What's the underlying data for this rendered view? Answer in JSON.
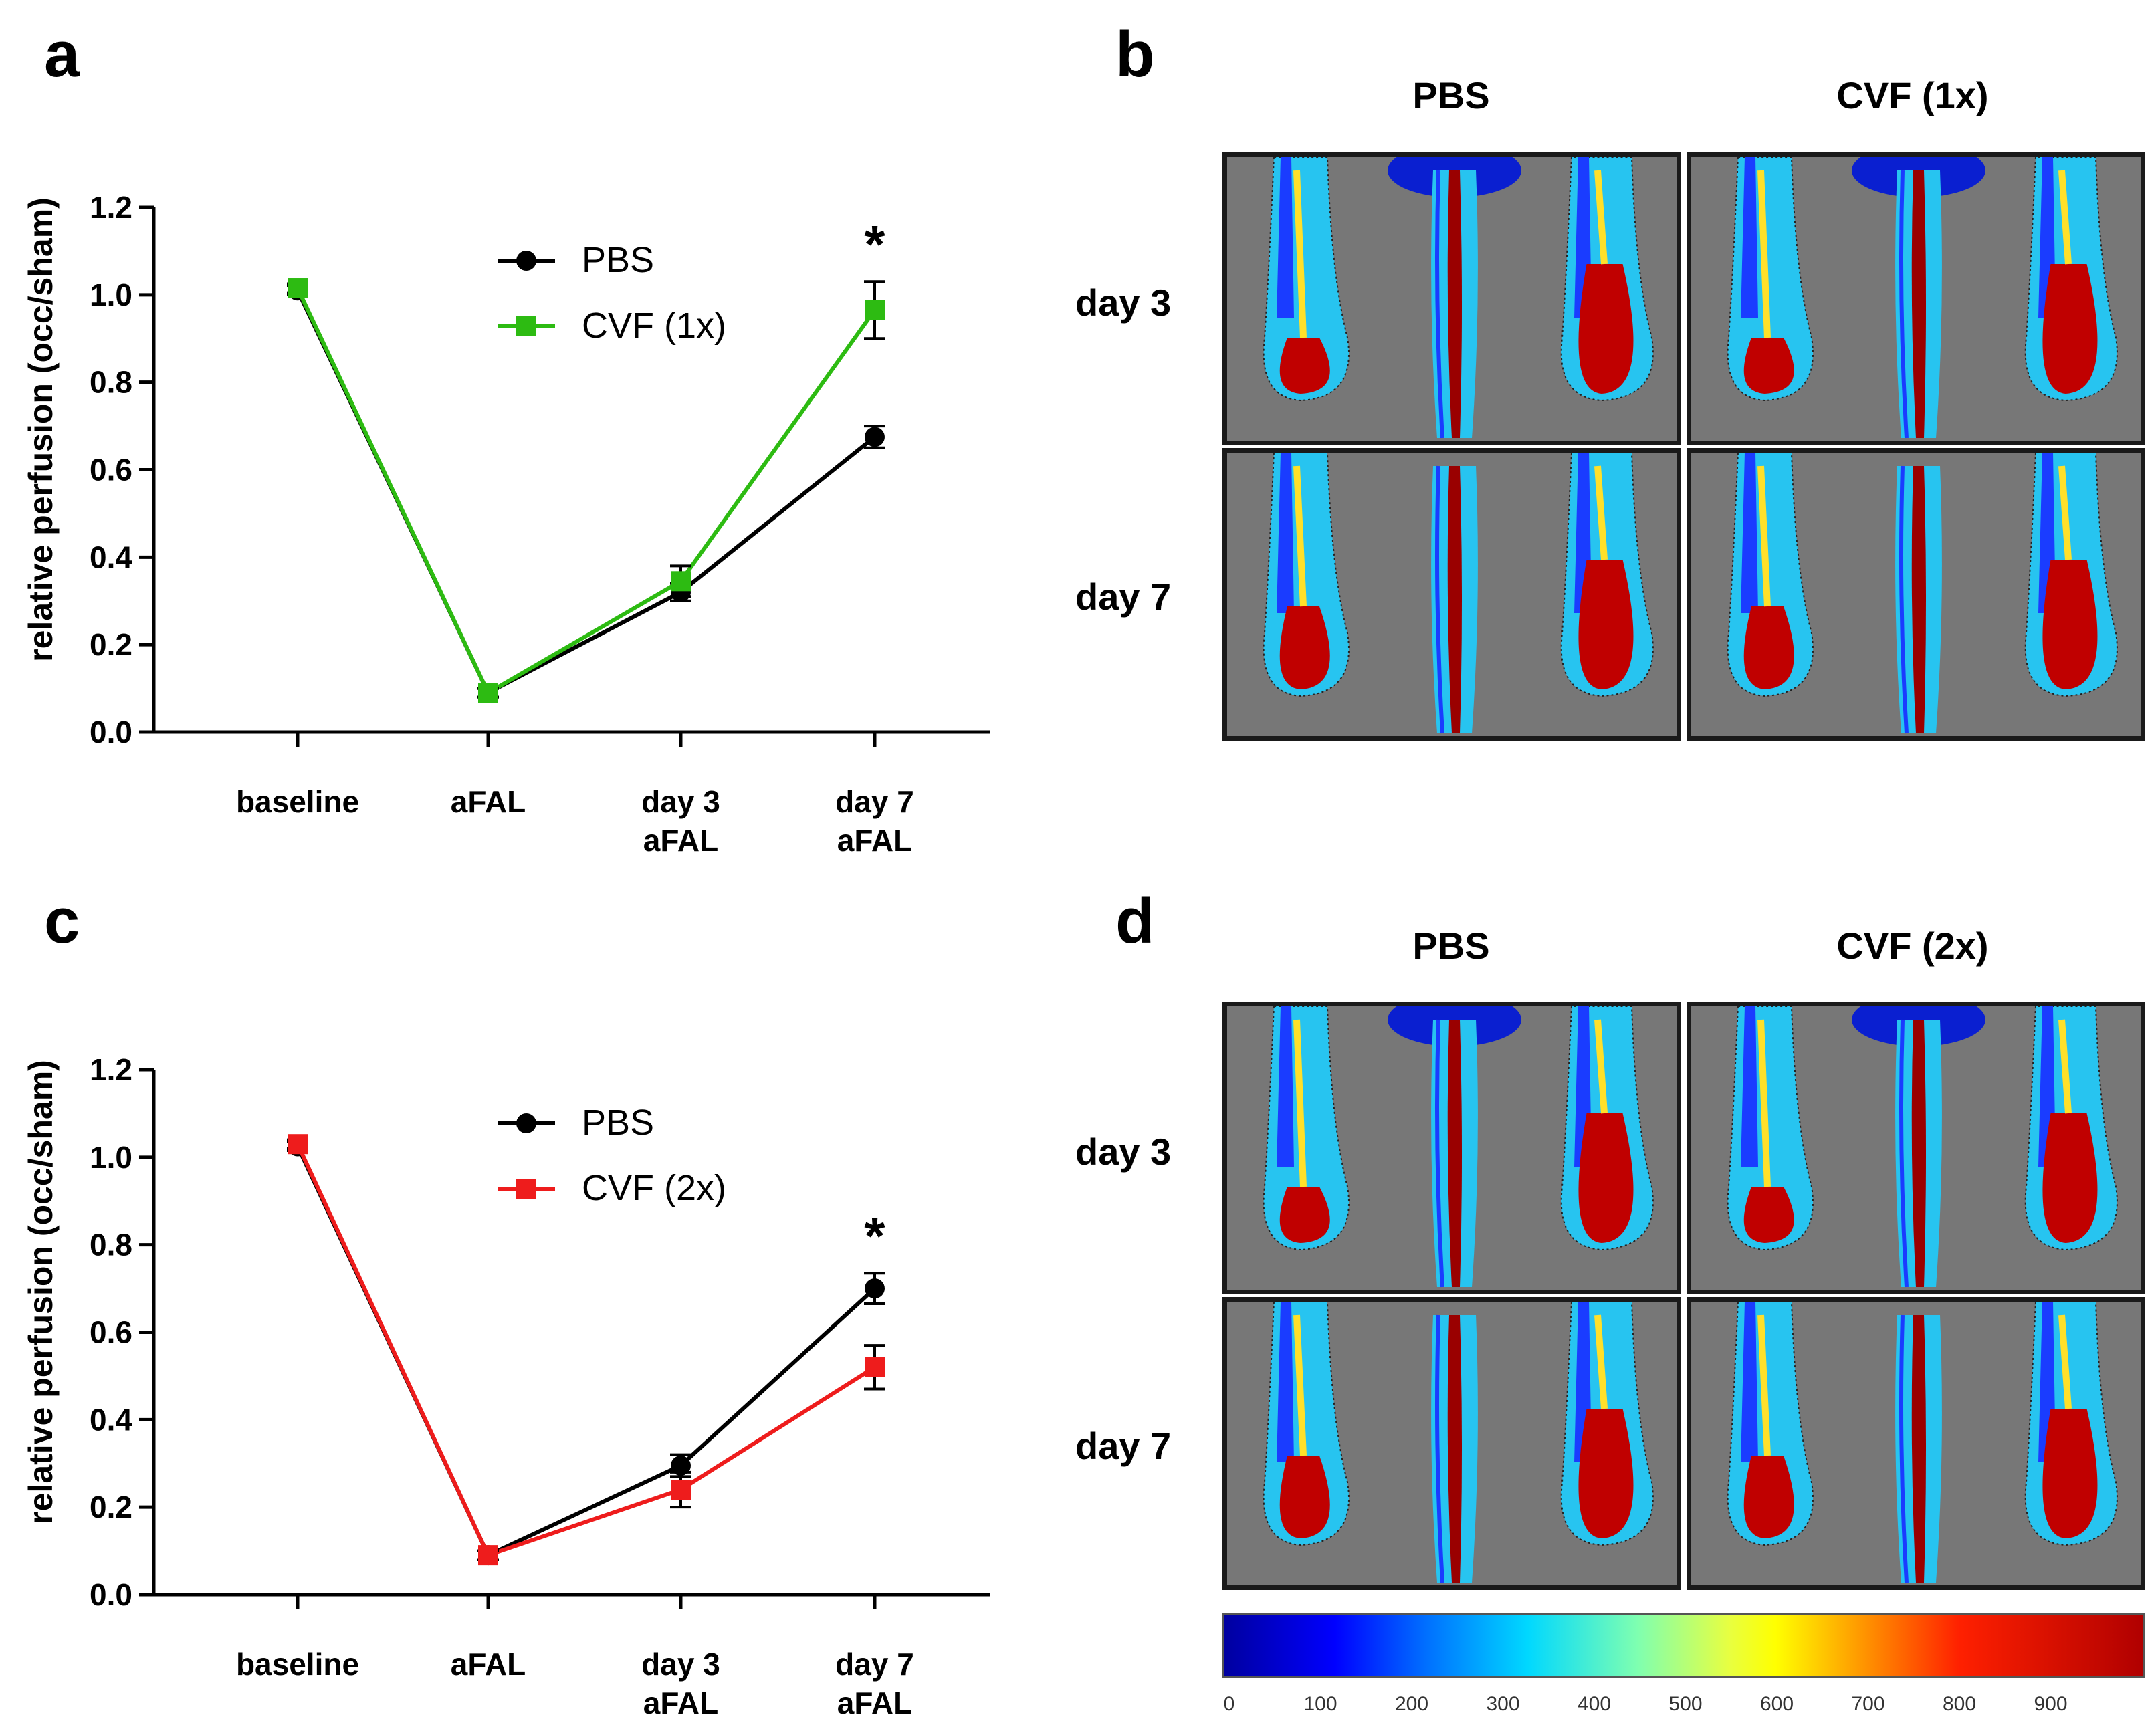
{
  "panels": {
    "a": "a",
    "b": "b",
    "c": "c",
    "d": "d"
  },
  "chart_data": [
    {
      "id": "a",
      "type": "line",
      "categories": [
        "baseline",
        "aFAL",
        "day 3\naFAL",
        "day 7\naFAL"
      ],
      "category_lines": [
        [
          "baseline"
        ],
        [
          "aFAL"
        ],
        [
          "day 3",
          "aFAL"
        ],
        [
          "day 7",
          "aFAL"
        ]
      ],
      "ylabel": "relative perfusion (occ/sham)",
      "ylim": [
        0,
        1.2
      ],
      "yticks": [
        "0.0",
        "0.2",
        "0.4",
        "0.6",
        "0.8",
        "1.0",
        "1.2"
      ],
      "legend_position": "top-center",
      "annotation": "*",
      "series": [
        {
          "name": "PBS",
          "color": "#000000",
          "marker": "circle",
          "values": [
            1.01,
            0.09,
            0.32,
            0.675
          ],
          "err": [
            0.01,
            0.01,
            0.02,
            0.025
          ]
        },
        {
          "name": "CVF (1x)",
          "color": "#2dbb12",
          "marker": "square",
          "values": [
            1.015,
            0.09,
            0.345,
            0.965
          ],
          "err": [
            0.01,
            0.01,
            0.035,
            0.065
          ]
        }
      ]
    },
    {
      "id": "c",
      "type": "line",
      "categories": [
        "baseline",
        "aFAL",
        "day 3\naFAL",
        "day 7\naFAL"
      ],
      "category_lines": [
        [
          "baseline"
        ],
        [
          "aFAL"
        ],
        [
          "day 3",
          "aFAL"
        ],
        [
          "day 7",
          "aFAL"
        ]
      ],
      "ylabel": "relative perfusion (occ/sham)",
      "ylim": [
        0,
        1.2
      ],
      "yticks": [
        "0.0",
        "0.2",
        "0.4",
        "0.6",
        "0.8",
        "1.0",
        "1.2"
      ],
      "legend_position": "top-center",
      "annotation": "*",
      "series": [
        {
          "name": "PBS",
          "color": "#000000",
          "marker": "circle",
          "values": [
            1.025,
            0.09,
            0.295,
            0.7
          ],
          "err": [
            0.01,
            0.01,
            0.025,
            0.035
          ]
        },
        {
          "name": "CVF (2x)",
          "color": "#ee1c1c",
          "marker": "square",
          "values": [
            1.03,
            0.09,
            0.24,
            0.52
          ],
          "err": [
            0.01,
            0.01,
            0.04,
            0.05
          ]
        }
      ]
    }
  ],
  "image_grids": {
    "b": {
      "columns": [
        "PBS",
        "CVF (1x)"
      ],
      "rows": [
        "day 3",
        "day 7"
      ]
    },
    "d": {
      "columns": [
        "PBS",
        "CVF (2x)"
      ],
      "rows": [
        "day 3",
        "day 7"
      ]
    }
  },
  "colorbar": {
    "ticks": [
      "0",
      "100",
      "200",
      "300",
      "400",
      "500",
      "600",
      "700",
      "800",
      "900"
    ]
  }
}
